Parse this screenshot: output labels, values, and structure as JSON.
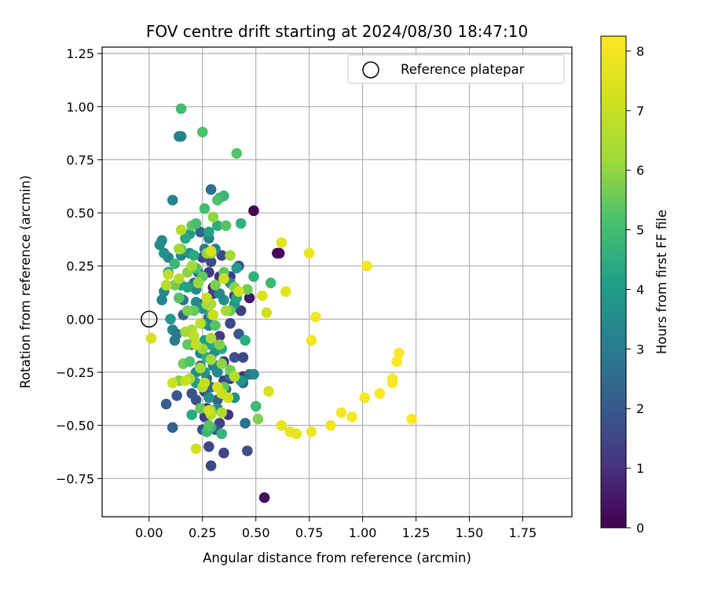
{
  "chart_data": {
    "type": "scatter",
    "title": "FOV centre drift starting at 2024/08/30 18:47:10",
    "xlabel": "Angular distance from reference (arcmin)",
    "ylabel": "Rotation from reference (arcmin)",
    "xlim": [
      -0.22,
      1.98
    ],
    "ylim": [
      -0.93,
      1.28
    ],
    "xticks": [
      0.0,
      0.25,
      0.5,
      0.75,
      1.0,
      1.25,
      1.5,
      1.75
    ],
    "xtick_labels": [
      "0.00",
      "0.25",
      "0.50",
      "0.75",
      "1.00",
      "1.25",
      "1.50",
      "1.75"
    ],
    "yticks": [
      -0.75,
      -0.5,
      -0.25,
      0.0,
      0.25,
      0.5,
      0.75,
      1.0,
      1.25
    ],
    "ytick_labels": [
      "−0.75",
      "−0.50",
      "−0.25",
      "0.00",
      "0.25",
      "0.50",
      "0.75",
      "1.00",
      "1.25"
    ],
    "grid": true,
    "legend": {
      "placement": "top-right",
      "entries": [
        "Reference platepar"
      ]
    },
    "reference_marker": {
      "x": 0.0,
      "y": 0.0,
      "label": "Reference platepar"
    },
    "colorbar": {
      "label": "Hours from first FF file",
      "colormap": "viridis",
      "range": [
        0,
        8.25
      ],
      "ticks": [
        0,
        1,
        2,
        3,
        4,
        5,
        6,
        7,
        8
      ],
      "tick_labels": [
        "0",
        "1",
        "2",
        "3",
        "4",
        "5",
        "6",
        "7",
        "8"
      ]
    },
    "points": [
      {
        "x": 0.49,
        "y": 0.51,
        "c": 0.05
      },
      {
        "x": 0.6,
        "y": 0.31,
        "c": 0.08
      },
      {
        "x": 0.61,
        "y": 0.31,
        "c": 0.1
      },
      {
        "x": 0.54,
        "y": -0.84,
        "c": 0.3
      },
      {
        "x": 0.47,
        "y": 0.1,
        "c": 0.5
      },
      {
        "x": 0.3,
        "y": 0.15,
        "c": 0.6
      },
      {
        "x": 0.38,
        "y": -0.28,
        "c": 0.8
      },
      {
        "x": 0.44,
        "y": -0.27,
        "c": 1.0
      },
      {
        "x": 0.37,
        "y": -0.45,
        "c": 1.1
      },
      {
        "x": 0.27,
        "y": -0.42,
        "c": 1.2
      },
      {
        "x": 0.26,
        "y": -0.46,
        "c": 1.3
      },
      {
        "x": 0.33,
        "y": -0.49,
        "c": 1.4
      },
      {
        "x": 0.28,
        "y": -0.6,
        "c": 1.5
      },
      {
        "x": 0.29,
        "y": -0.69,
        "c": 1.6
      },
      {
        "x": 0.35,
        "y": -0.63,
        "c": 1.5
      },
      {
        "x": 0.46,
        "y": -0.62,
        "c": 1.7
      },
      {
        "x": 0.25,
        "y": -0.52,
        "c": 1.8
      },
      {
        "x": 0.31,
        "y": -0.52,
        "c": 1.9
      },
      {
        "x": 0.35,
        "y": -0.29,
        "c": 1.4
      },
      {
        "x": 0.32,
        "y": -0.22,
        "c": 1.6
      },
      {
        "x": 0.29,
        "y": -0.18,
        "c": 1.2
      },
      {
        "x": 0.35,
        "y": -0.2,
        "c": 1.3
      },
      {
        "x": 0.4,
        "y": -0.18,
        "c": 1.8
      },
      {
        "x": 0.33,
        "y": -0.08,
        "c": 1.2
      },
      {
        "x": 0.38,
        "y": -0.02,
        "c": 1.6
      },
      {
        "x": 0.28,
        "y": 0.01,
        "c": 1.9
      },
      {
        "x": 0.25,
        "y": 0.07,
        "c": 1.6
      },
      {
        "x": 0.3,
        "y": 0.12,
        "c": 1.4
      },
      {
        "x": 0.33,
        "y": 0.2,
        "c": 1.1
      },
      {
        "x": 0.29,
        "y": 0.27,
        "c": 1.7
      },
      {
        "x": 0.28,
        "y": 0.22,
        "c": 1.3
      },
      {
        "x": 0.25,
        "y": 0.29,
        "c": 1.5
      },
      {
        "x": 0.34,
        "y": 0.3,
        "c": 1.6
      },
      {
        "x": 0.38,
        "y": 0.2,
        "c": 1.3
      },
      {
        "x": 0.42,
        "y": 0.25,
        "c": 1.8
      },
      {
        "x": 0.4,
        "y": 0.11,
        "c": 1.2
      },
      {
        "x": 0.43,
        "y": 0.04,
        "c": 1.4
      },
      {
        "x": 0.42,
        "y": -0.07,
        "c": 1.9
      },
      {
        "x": 0.44,
        "y": -0.18,
        "c": 1.6
      },
      {
        "x": 0.22,
        "y": -0.38,
        "c": 1.8
      },
      {
        "x": 0.26,
        "y": -0.34,
        "c": 1.7
      },
      {
        "x": 0.2,
        "y": -0.35,
        "c": 1.9
      },
      {
        "x": 0.13,
        "y": -0.36,
        "c": 2.0
      },
      {
        "x": 0.08,
        "y": -0.4,
        "c": 2.1
      },
      {
        "x": 0.11,
        "y": -0.51,
        "c": 2.2
      },
      {
        "x": 0.29,
        "y": -0.32,
        "c": 2.3
      },
      {
        "x": 0.32,
        "y": -0.38,
        "c": 2.2
      },
      {
        "x": 0.36,
        "y": -0.33,
        "c": 2.4
      },
      {
        "x": 0.44,
        "y": -0.3,
        "c": 2.6
      },
      {
        "x": 0.47,
        "y": -0.26,
        "c": 2.9
      },
      {
        "x": 0.45,
        "y": -0.49,
        "c": 2.7
      },
      {
        "x": 0.38,
        "y": -0.27,
        "c": 2.5
      },
      {
        "x": 0.27,
        "y": -0.28,
        "c": 2.3
      },
      {
        "x": 0.24,
        "y": -0.22,
        "c": 2.6
      },
      {
        "x": 0.2,
        "y": -0.12,
        "c": 2.4
      },
      {
        "x": 0.16,
        "y": 0.02,
        "c": 2.2
      },
      {
        "x": 0.14,
        "y": 0.1,
        "c": 2.5
      },
      {
        "x": 0.16,
        "y": 0.09,
        "c": 2.8
      },
      {
        "x": 0.21,
        "y": 0.17,
        "c": 2.7
      },
      {
        "x": 0.23,
        "y": 0.22,
        "c": 2.9
      },
      {
        "x": 0.24,
        "y": 0.41,
        "c": 2.4
      },
      {
        "x": 0.29,
        "y": 0.61,
        "c": 2.6
      },
      {
        "x": 0.26,
        "y": 0.33,
        "c": 3.0
      },
      {
        "x": 0.28,
        "y": 0.38,
        "c": 3.1
      },
      {
        "x": 0.31,
        "y": 0.33,
        "c": 3.2
      },
      {
        "x": 0.11,
        "y": -0.05,
        "c": 3.2
      },
      {
        "x": 0.12,
        "y": -0.1,
        "c": 3.0
      },
      {
        "x": 0.13,
        "y": -0.07,
        "c": 2.9
      },
      {
        "x": 0.07,
        "y": 0.13,
        "c": 3.3
      },
      {
        "x": 0.06,
        "y": 0.09,
        "c": 3.2
      },
      {
        "x": 0.09,
        "y": 0.29,
        "c": 3.3
      },
      {
        "x": 0.06,
        "y": 0.37,
        "c": 3.4
      },
      {
        "x": 0.11,
        "y": 0.56,
        "c": 3.3
      },
      {
        "x": 0.14,
        "y": 0.86,
        "c": 3.3
      },
      {
        "x": 0.05,
        "y": 0.35,
        "c": 3.5
      },
      {
        "x": 0.07,
        "y": 0.31,
        "c": 3.6
      },
      {
        "x": 0.15,
        "y": 0.3,
        "c": 3.4
      },
      {
        "x": 0.19,
        "y": 0.31,
        "c": 3.6
      },
      {
        "x": 0.22,
        "y": 0.14,
        "c": 3.4
      },
      {
        "x": 0.22,
        "y": 0.08,
        "c": 3.5
      },
      {
        "x": 0.24,
        "y": -0.16,
        "c": 3.3
      },
      {
        "x": 0.22,
        "y": -0.25,
        "c": 3.5
      },
      {
        "x": 0.26,
        "y": -0.25,
        "c": 3.7
      },
      {
        "x": 0.3,
        "y": -0.22,
        "c": 3.2
      },
      {
        "x": 0.32,
        "y": -0.25,
        "c": 3.4
      },
      {
        "x": 0.31,
        "y": -0.15,
        "c": 3.6
      },
      {
        "x": 0.28,
        "y": -0.03,
        "c": 3.3
      },
      {
        "x": 0.25,
        "y": 0.05,
        "c": 3.7
      },
      {
        "x": 0.35,
        "y": 0.09,
        "c": 3.6
      },
      {
        "x": 0.4,
        "y": 0.07,
        "c": 3.8
      },
      {
        "x": 0.41,
        "y": 0.24,
        "c": 3.9
      },
      {
        "x": 0.33,
        "y": 0.12,
        "c": 3.4
      },
      {
        "x": 0.38,
        "y": 0.17,
        "c": 3.5
      },
      {
        "x": 0.28,
        "y": -0.37,
        "c": 3.6
      },
      {
        "x": 0.32,
        "y": -0.42,
        "c": 3.5
      },
      {
        "x": 0.4,
        "y": -0.37,
        "c": 3.7
      },
      {
        "x": 0.43,
        "y": -0.29,
        "c": 3.8
      },
      {
        "x": 0.49,
        "y": -0.26,
        "c": 3.3
      },
      {
        "x": 0.22,
        "y": -0.3,
        "c": 3.9
      },
      {
        "x": 0.15,
        "y": 0.86,
        "c": 3.2
      },
      {
        "x": 0.1,
        "y": 0.0,
        "c": 3.9
      },
      {
        "x": 0.09,
        "y": 0.22,
        "c": 4.0
      },
      {
        "x": 0.15,
        "y": 0.16,
        "c": 4.1
      },
      {
        "x": 0.18,
        "y": 0.15,
        "c": 4.2
      },
      {
        "x": 0.19,
        "y": 0.4,
        "c": 4.0
      },
      {
        "x": 0.17,
        "y": 0.38,
        "c": 4.3
      },
      {
        "x": 0.21,
        "y": 0.3,
        "c": 4.4
      },
      {
        "x": 0.28,
        "y": 0.41,
        "c": 4.2
      },
      {
        "x": 0.32,
        "y": 0.44,
        "c": 4.5
      },
      {
        "x": 0.43,
        "y": 0.45,
        "c": 4.6
      },
      {
        "x": 0.33,
        "y": 0.57,
        "c": 4.7
      },
      {
        "x": 0.35,
        "y": 0.58,
        "c": 4.8
      },
      {
        "x": 0.26,
        "y": -0.1,
        "c": 4.1
      },
      {
        "x": 0.29,
        "y": -0.12,
        "c": 4.3
      },
      {
        "x": 0.27,
        "y": -0.18,
        "c": 4.5
      },
      {
        "x": 0.34,
        "y": -0.14,
        "c": 4.4
      },
      {
        "x": 0.21,
        "y": -0.08,
        "c": 4.6
      },
      {
        "x": 0.25,
        "y": -0.02,
        "c": 4.2
      },
      {
        "x": 0.29,
        "y": 0.02,
        "c": 4.7
      },
      {
        "x": 0.2,
        "y": -0.45,
        "c": 4.4
      },
      {
        "x": 0.29,
        "y": -0.51,
        "c": 4.6
      },
      {
        "x": 0.34,
        "y": -0.54,
        "c": 4.7
      },
      {
        "x": 0.27,
        "y": -0.53,
        "c": 4.8
      },
      {
        "x": 0.41,
        "y": 0.1,
        "c": 4.3
      },
      {
        "x": 0.45,
        "y": -0.1,
        "c": 4.5
      },
      {
        "x": 0.49,
        "y": 0.2,
        "c": 4.6
      },
      {
        "x": 0.57,
        "y": 0.17,
        "c": 4.9
      },
      {
        "x": 0.5,
        "y": -0.41,
        "c": 4.9
      },
      {
        "x": 0.12,
        "y": 0.26,
        "c": 4.8
      },
      {
        "x": 0.15,
        "y": 0.99,
        "c": 5.0
      },
      {
        "x": 0.25,
        "y": 0.88,
        "c": 5.2
      },
      {
        "x": 0.41,
        "y": 0.78,
        "c": 5.3
      },
      {
        "x": 0.26,
        "y": 0.52,
        "c": 5.0
      },
      {
        "x": 0.32,
        "y": 0.56,
        "c": 5.2
      },
      {
        "x": 0.36,
        "y": 0.44,
        "c": 5.3
      },
      {
        "x": 0.2,
        "y": 0.44,
        "c": 5.4
      },
      {
        "x": 0.22,
        "y": 0.45,
        "c": 5.1
      },
      {
        "x": 0.15,
        "y": 0.33,
        "c": 5.5
      },
      {
        "x": 0.22,
        "y": 0.24,
        "c": 5.2
      },
      {
        "x": 0.25,
        "y": 0.2,
        "c": 5.4
      },
      {
        "x": 0.12,
        "y": 0.16,
        "c": 5.6
      },
      {
        "x": 0.14,
        "y": 0.1,
        "c": 5.3
      },
      {
        "x": 0.21,
        "y": 0.04,
        "c": 5.5
      },
      {
        "x": 0.18,
        "y": 0.04,
        "c": 5.7
      },
      {
        "x": 0.18,
        "y": -0.12,
        "c": 5.4
      },
      {
        "x": 0.16,
        "y": -0.21,
        "c": 5.6
      },
      {
        "x": 0.14,
        "y": -0.29,
        "c": 5.8
      },
      {
        "x": 0.19,
        "y": -0.2,
        "c": 5.2
      },
      {
        "x": 0.24,
        "y": -0.42,
        "c": 5.5
      },
      {
        "x": 0.28,
        "y": -0.5,
        "c": 5.3
      },
      {
        "x": 0.29,
        "y": -0.43,
        "c": 5.7
      },
      {
        "x": 0.35,
        "y": -0.32,
        "c": 5.4
      },
      {
        "x": 0.38,
        "y": -0.24,
        "c": 5.6
      },
      {
        "x": 0.33,
        "y": -0.12,
        "c": 5.8
      },
      {
        "x": 0.31,
        "y": -0.03,
        "c": 5.3
      },
      {
        "x": 0.38,
        "y": 0.04,
        "c": 5.5
      },
      {
        "x": 0.31,
        "y": 0.16,
        "c": 5.7
      },
      {
        "x": 0.35,
        "y": 0.22,
        "c": 5.4
      },
      {
        "x": 0.4,
        "y": 0.15,
        "c": 5.9
      },
      {
        "x": 0.46,
        "y": 0.14,
        "c": 5.6
      },
      {
        "x": 0.51,
        "y": -0.47,
        "c": 5.8
      },
      {
        "x": 0.18,
        "y": 0.22,
        "c": 5.9
      },
      {
        "x": 0.3,
        "y": 0.48,
        "c": 6.0
      },
      {
        "x": 0.29,
        "y": 0.31,
        "c": 6.1
      },
      {
        "x": 0.27,
        "y": 0.31,
        "c": 6.0
      },
      {
        "x": 0.14,
        "y": 0.33,
        "c": 6.2
      },
      {
        "x": 0.2,
        "y": 0.25,
        "c": 6.3
      },
      {
        "x": 0.23,
        "y": 0.17,
        "c": 6.1
      },
      {
        "x": 0.38,
        "y": 0.3,
        "c": 6.2
      },
      {
        "x": 0.29,
        "y": 0.07,
        "c": 6.4
      },
      {
        "x": 0.27,
        "y": 0.07,
        "c": 6.3
      },
      {
        "x": 0.36,
        "y": 0.04,
        "c": 6.2
      },
      {
        "x": 0.25,
        "y": -0.14,
        "c": 6.1
      },
      {
        "x": 0.24,
        "y": -0.23,
        "c": 6.3
      },
      {
        "x": 0.29,
        "y": -0.09,
        "c": 6.4
      },
      {
        "x": 0.29,
        "y": -0.19,
        "c": 6.2
      },
      {
        "x": 0.34,
        "y": -0.21,
        "c": 6.0
      },
      {
        "x": 0.2,
        "y": -0.05,
        "c": 6.5
      },
      {
        "x": 0.17,
        "y": -0.06,
        "c": 6.3
      },
      {
        "x": 0.19,
        "y": -0.28,
        "c": 6.4
      },
      {
        "x": 0.25,
        "y": -0.32,
        "c": 6.5
      },
      {
        "x": 0.29,
        "y": -0.45,
        "c": 6.6
      },
      {
        "x": 0.34,
        "y": -0.44,
        "c": 6.5
      },
      {
        "x": 0.4,
        "y": -0.27,
        "c": 6.6
      },
      {
        "x": 0.15,
        "y": 0.42,
        "c": 6.6
      },
      {
        "x": 0.08,
        "y": 0.16,
        "c": 6.7
      },
      {
        "x": 0.09,
        "y": 0.21,
        "c": 6.8
      },
      {
        "x": 0.14,
        "y": 0.19,
        "c": 6.7
      },
      {
        "x": 0.21,
        "y": -0.08,
        "c": 6.8
      },
      {
        "x": 0.24,
        "y": -0.02,
        "c": 6.9
      },
      {
        "x": 0.27,
        "y": 0.1,
        "c": 7.0
      },
      {
        "x": 0.3,
        "y": 0.02,
        "c": 7.1
      },
      {
        "x": 0.22,
        "y": -0.12,
        "c": 6.9
      },
      {
        "x": 0.17,
        "y": -0.29,
        "c": 7.0
      },
      {
        "x": 0.11,
        "y": -0.3,
        "c": 7.1
      },
      {
        "x": 0.26,
        "y": -0.3,
        "c": 7.0
      },
      {
        "x": 0.28,
        "y": -0.43,
        "c": 7.2
      },
      {
        "x": 0.34,
        "y": -0.35,
        "c": 7.1
      },
      {
        "x": 0.37,
        "y": -0.37,
        "c": 7.2
      },
      {
        "x": 0.32,
        "y": -0.32,
        "c": 7.3
      },
      {
        "x": 0.22,
        "y": -0.61,
        "c": 7.2
      },
      {
        "x": 0.01,
        "y": -0.09,
        "c": 7.3
      },
      {
        "x": 0.29,
        "y": 0.32,
        "c": 7.4
      },
      {
        "x": 0.35,
        "y": 0.19,
        "c": 7.2
      },
      {
        "x": 0.42,
        "y": 0.13,
        "c": 7.3
      },
      {
        "x": 0.56,
        "y": -0.34,
        "c": 7.4
      },
      {
        "x": 0.55,
        "y": 0.03,
        "c": 7.3
      },
      {
        "x": 0.53,
        "y": 0.11,
        "c": 7.5
      },
      {
        "x": 0.62,
        "y": 0.36,
        "c": 7.6
      },
      {
        "x": 0.64,
        "y": 0.13,
        "c": 7.6
      },
      {
        "x": 0.62,
        "y": -0.5,
        "c": 7.7
      },
      {
        "x": 0.66,
        "y": -0.53,
        "c": 7.8
      },
      {
        "x": 0.69,
        "y": -0.54,
        "c": 7.8
      },
      {
        "x": 0.76,
        "y": -0.53,
        "c": 7.9
      },
      {
        "x": 0.75,
        "y": 0.31,
        "c": 7.9
      },
      {
        "x": 0.78,
        "y": 0.01,
        "c": 8.0
      },
      {
        "x": 0.76,
        "y": -0.1,
        "c": 8.0
      },
      {
        "x": 0.85,
        "y": -0.5,
        "c": 8.0
      },
      {
        "x": 0.9,
        "y": -0.44,
        "c": 8.1
      },
      {
        "x": 0.95,
        "y": -0.46,
        "c": 8.1
      },
      {
        "x": 1.02,
        "y": 0.25,
        "c": 8.1
      },
      {
        "x": 1.01,
        "y": -0.37,
        "c": 8.1
      },
      {
        "x": 1.08,
        "y": -0.35,
        "c": 8.2
      },
      {
        "x": 1.14,
        "y": -0.28,
        "c": 8.2
      },
      {
        "x": 1.14,
        "y": -0.3,
        "c": 8.2
      },
      {
        "x": 1.16,
        "y": -0.2,
        "c": 8.2
      },
      {
        "x": 1.17,
        "y": -0.16,
        "c": 8.2
      },
      {
        "x": 1.23,
        "y": -0.47,
        "c": 8.2
      }
    ]
  }
}
